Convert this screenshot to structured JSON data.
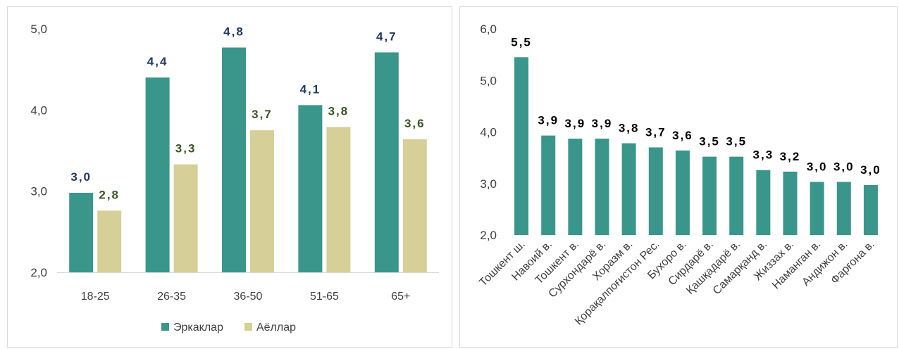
{
  "colors": {
    "men": "#3a968a",
    "women": "#d6cf98",
    "men_label": "#1f3864",
    "women_label": "#375623",
    "region": "#3a968a",
    "region_label": "#000000",
    "grid": "#d9d9d9"
  },
  "chart_data": [
    {
      "type": "bar",
      "categories": [
        "18-25",
        "26-35",
        "36-50",
        "51-65",
        "65+"
      ],
      "series": [
        {
          "name": "Эркаклар",
          "values": [
            2.98,
            4.4,
            4.77,
            4.06,
            4.71
          ],
          "labels": [
            "3,0",
            "4,4",
            "4,8",
            "4,1",
            "4,7"
          ]
        },
        {
          "name": "Аёллар",
          "values": [
            2.76,
            3.33,
            3.75,
            3.79,
            3.64
          ],
          "labels": [
            "2,8",
            "3,3",
            "3,7",
            "3,8",
            "3,6"
          ]
        }
      ],
      "ylim": [
        2.0,
        5.0
      ],
      "yticks": [
        "2,0",
        "3,0",
        "4,0",
        "5,0"
      ],
      "grid": false,
      "legend": "bottom"
    },
    {
      "type": "bar",
      "categories": [
        "Тошкент ш.",
        "Навоий в.",
        "Тошкент в.",
        "Сурхондарё в.",
        "Хоразм в.",
        "Қорақалпоғистон Рес.",
        "Бухоро в.",
        "Сирдарё в.",
        "Қашқадарё в.",
        "Самарқанд в.",
        "Жиззах в.",
        "Наманган в.",
        "Андижон в.",
        "Фарғона в."
      ],
      "series": [
        {
          "values": [
            5.45,
            3.93,
            3.87,
            3.87,
            3.78,
            3.7,
            3.64,
            3.52,
            3.52,
            3.26,
            3.23,
            3.03,
            3.03,
            2.97
          ],
          "labels": [
            "5,5",
            "3,9",
            "3,9",
            "3,9",
            "3,8",
            "3,7",
            "3,6",
            "3,5",
            "3,5",
            "3,3",
            "3,2",
            "3,0",
            "3,0",
            "3,0"
          ]
        }
      ],
      "ylim": [
        2.0,
        6.0
      ],
      "yticks": [
        "2,0",
        "3,0",
        "4,0",
        "5,0",
        "6,0"
      ],
      "grid": false,
      "legend": "none"
    }
  ]
}
